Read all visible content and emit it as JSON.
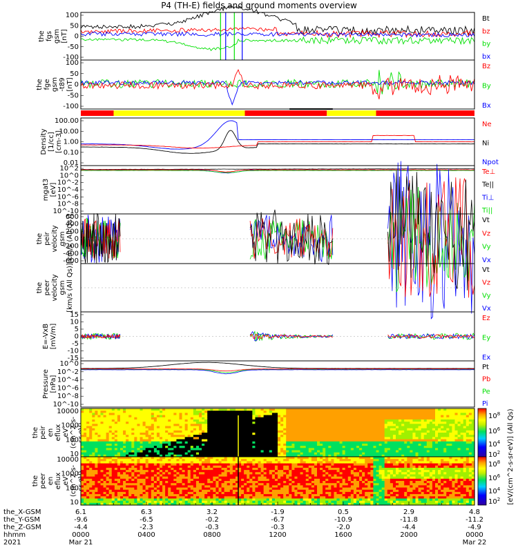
{
  "title": "P4 (TH-E) fields and ground moments overview",
  "colors": {
    "black": "#000000",
    "red": "#ff0000",
    "green": "#00e000",
    "blue": "#0000ff",
    "yellow": "#ffff00"
  },
  "chart_data": [
    {
      "type": "line",
      "panel": "fgs",
      "ylabel": [
        "the",
        "fgs",
        "gsm",
        "[nT]"
      ],
      "ylim": [
        -100,
        100
      ],
      "yticks": [
        "100",
        "50",
        "0",
        "-50",
        "-100"
      ],
      "series": [
        {
          "name": "Bt",
          "color": "black"
        },
        {
          "name": "bz",
          "color": "red"
        },
        {
          "name": "by",
          "color": "green"
        },
        {
          "name": "bx",
          "color": "blue"
        }
      ]
    },
    {
      "type": "line",
      "panel": "fge",
      "ylabel": [
        "the",
        "fge",
        "gsm",
        "-t89",
        "[nT]"
      ],
      "ylim": [
        -130,
        130
      ],
      "yticks": [
        "100",
        "50",
        "0",
        "-50",
        "-100"
      ],
      "series": [
        {
          "name": "Bz",
          "color": "red"
        },
        {
          "name": "By",
          "color": "green"
        },
        {
          "name": "Bx",
          "color": "blue"
        }
      ]
    },
    {
      "type": "bar",
      "panel": "mode-bar",
      "segments": [
        {
          "color": "red",
          "to": "0200"
        },
        {
          "color": "yellow",
          "to": "1000"
        },
        {
          "color": "red",
          "to": "1500"
        },
        {
          "color": "yellow",
          "to": "1800"
        },
        {
          "color": "red",
          "to": "2400"
        }
      ]
    },
    {
      "type": "line",
      "panel": "density",
      "ylabel": [
        "Density",
        "[1/cc]",
        "[cm-3]"
      ],
      "ylim": [
        0.01,
        100
      ],
      "scale": "log",
      "yticks": [
        "100.00",
        "10.00",
        "1.00",
        "0.10",
        "0.01"
      ],
      "series": [
        {
          "name": "Ne",
          "color": "red"
        },
        {
          "name": "Ni",
          "color": "black"
        },
        {
          "name": "Npot",
          "color": "blue"
        }
      ]
    },
    {
      "type": "line",
      "panel": "temperature",
      "ylabel": [
        "mgat3",
        "[eV]"
      ],
      "ylim": [
        1e-10,
        100.0
      ],
      "scale": "log",
      "yticks": [
        "10^2",
        "10^0",
        "10^-2",
        "10^-4",
        "10^-6",
        "10^-8",
        "10^-10"
      ],
      "series": [
        {
          "name": "Te⊥",
          "color": "red"
        },
        {
          "name": "Te||",
          "color": "black"
        },
        {
          "name": "Ti⊥",
          "color": "blue"
        },
        {
          "name": "Ti||",
          "color": "green"
        }
      ]
    },
    {
      "type": "line",
      "panel": "ion-velocity",
      "ylabel": [
        "the",
        "peir",
        "velocity",
        "gsm",
        "[km/s (All Qs)]"
      ],
      "ylim": [
        -600,
        600
      ],
      "yticks": [
        "600",
        "400",
        "200",
        "0",
        "-200",
        "-400",
        "-600"
      ],
      "series": [
        {
          "name": "Vt",
          "color": "black"
        },
        {
          "name": "Vz",
          "color": "red"
        },
        {
          "name": "Vy",
          "color": "green"
        },
        {
          "name": "Vx",
          "color": "blue"
        }
      ]
    },
    {
      "type": "line",
      "panel": "electron-velocity",
      "ylabel": [
        "the",
        "peer",
        "velocity",
        "gsm",
        "[km/s (All Qs)]"
      ],
      "ylim": [
        -600,
        600
      ],
      "yticks": [],
      "series": [
        {
          "name": "Vt",
          "color": "black"
        },
        {
          "name": "Vz",
          "color": "red"
        },
        {
          "name": "Vy",
          "color": "green"
        },
        {
          "name": "Vx",
          "color": "blue"
        }
      ]
    },
    {
      "type": "line",
      "panel": "efield",
      "ylabel": [
        "E=-VxB",
        "[mV/m]"
      ],
      "ylim": [
        -15,
        15
      ],
      "yticks": [
        "15",
        "10",
        "5",
        "0",
        "-5",
        "-10",
        "-15"
      ],
      "series": [
        {
          "name": "Ez",
          "color": "red"
        },
        {
          "name": "Ey",
          "color": "green"
        },
        {
          "name": "Ex",
          "color": "blue"
        }
      ]
    },
    {
      "type": "line",
      "panel": "pressure",
      "ylabel": [
        "Pressure",
        "[nPa]"
      ],
      "ylim": [
        1e-10,
        1
      ],
      "scale": "log",
      "yticks": [
        "10^0",
        "10^-2",
        "10^-4",
        "10^-6",
        "10^-8",
        "10^-10"
      ],
      "series": [
        {
          "name": "Pt",
          "color": "black"
        },
        {
          "name": "Pb",
          "color": "red"
        },
        {
          "name": "Pe",
          "color": "green"
        },
        {
          "name": "Pi",
          "color": "blue"
        }
      ]
    },
    {
      "type": "heatmap",
      "panel": "ion-spectrogram",
      "ylabel": [
        "the",
        "peir",
        "en",
        "eflux",
        "eV",
        "(cm^2-s-",
        "sr-eV)"
      ],
      "ylim": [
        10,
        10000
      ],
      "scale": "log",
      "yticks": [
        "10000",
        "1000",
        "100",
        "10"
      ]
    },
    {
      "type": "heatmap",
      "panel": "electron-spectrogram",
      "ylabel": [
        "the",
        "peer",
        "en",
        "eflux",
        "eV",
        "(cm^2-s-",
        "sr-eV)"
      ],
      "ylim": [
        10,
        10000
      ],
      "scale": "log",
      "yticks": [
        "10000",
        "1000",
        "100",
        "10"
      ]
    }
  ],
  "colorbar": {
    "ticks": [
      "10^8",
      "10^6",
      "10^4",
      "10^2",
      "10^8",
      "10^6",
      "10^4",
      "10^2"
    ],
    "label": "[eV/(cm^2-s-sr-eV)] (All Qs)"
  },
  "xaxis": {
    "rows": [
      {
        "label": "the_X-GSM",
        "values": [
          "6.1",
          "6.3",
          "3.2",
          "-1.9",
          "0.5",
          "2.9",
          "4.8"
        ]
      },
      {
        "label": "the_Y-GSM",
        "values": [
          "-9.6",
          "-6.5",
          "-0.2",
          "-6.7",
          "-10.9",
          "-11.8",
          "-11.2"
        ]
      },
      {
        "label": "the_Z-GSM",
        "values": [
          "-4.4",
          "-2.3",
          "-0.3",
          "-0.3",
          "-2.0",
          "-4.4",
          "-4.9"
        ]
      },
      {
        "label": "hhmm",
        "values": [
          "0000",
          "0400",
          "0800",
          "1200",
          "1600",
          "2000",
          "0000"
        ]
      }
    ],
    "year": "2021",
    "date_start": "Mar 21",
    "date_end": "Mar 22"
  }
}
